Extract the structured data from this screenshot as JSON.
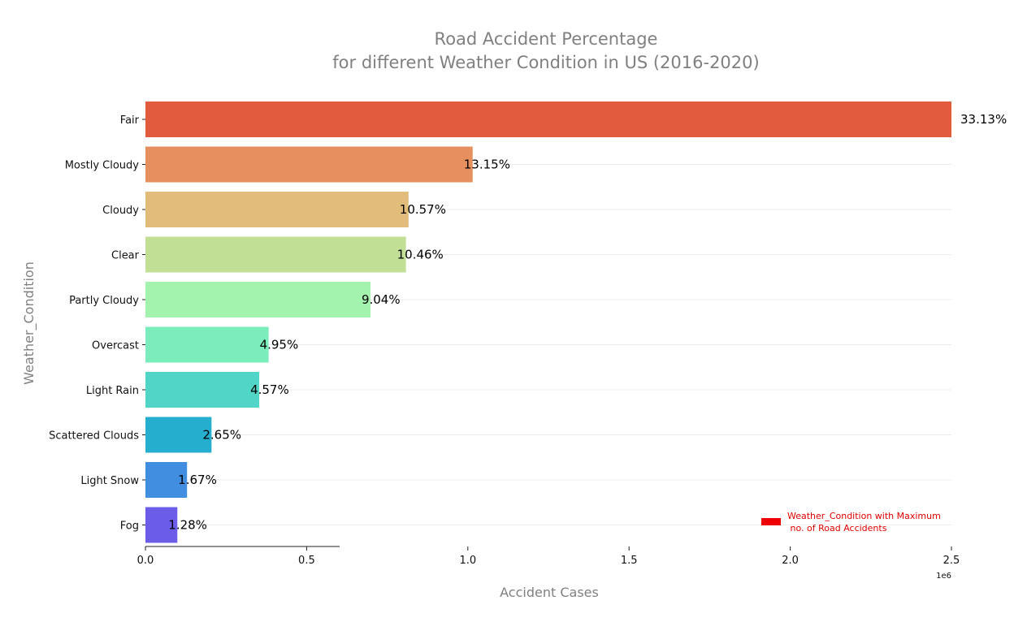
{
  "chart_data": {
    "type": "bar",
    "orientation": "horizontal",
    "title_line1": "Road Accident Percentage",
    "title_line2": "for different Weather Condition in US (2016-2020)",
    "xlabel": "Accident Cases",
    "ylabel": "Weather_Condition",
    "x_offset_label": "1e6",
    "xlim": [
      0,
      2.5
    ],
    "xticks": [
      "0.0",
      "0.5",
      "1.0",
      "1.5",
      "2.0",
      "2.5"
    ],
    "scale": 1000000,
    "categories": [
      "Fair",
      "Mostly Cloudy",
      "Cloudy",
      "Clear",
      "Partly Cloudy",
      "Overcast",
      "Light Rain",
      "Scattered Clouds",
      "Light Snow",
      "Fog"
    ],
    "values": [
      2500000,
      1015000,
      816000,
      808000,
      698000,
      382000,
      353000,
      205000,
      129000,
      99000
    ],
    "labels": [
      "33.13%",
      "13.15%",
      "10.57%",
      "10.46%",
      "9.04%",
      "4.95%",
      "4.57%",
      "2.65%",
      "1.67%",
      "1.28%"
    ],
    "colors": [
      "#e35b3f",
      "#e5905e",
      "#e2bc7b",
      "#c2df96",
      "#a3f2ae",
      "#7bedbd",
      "#51d5c6",
      "#26aecf",
      "#418ee0",
      "#6b5de8"
    ],
    "grid": "horizontal",
    "legend": {
      "position": "bottom-right",
      "color": "#ee0000",
      "line1": "Weather_Condition with Maximum",
      "line2": " no. of Road Accidents"
    }
  }
}
